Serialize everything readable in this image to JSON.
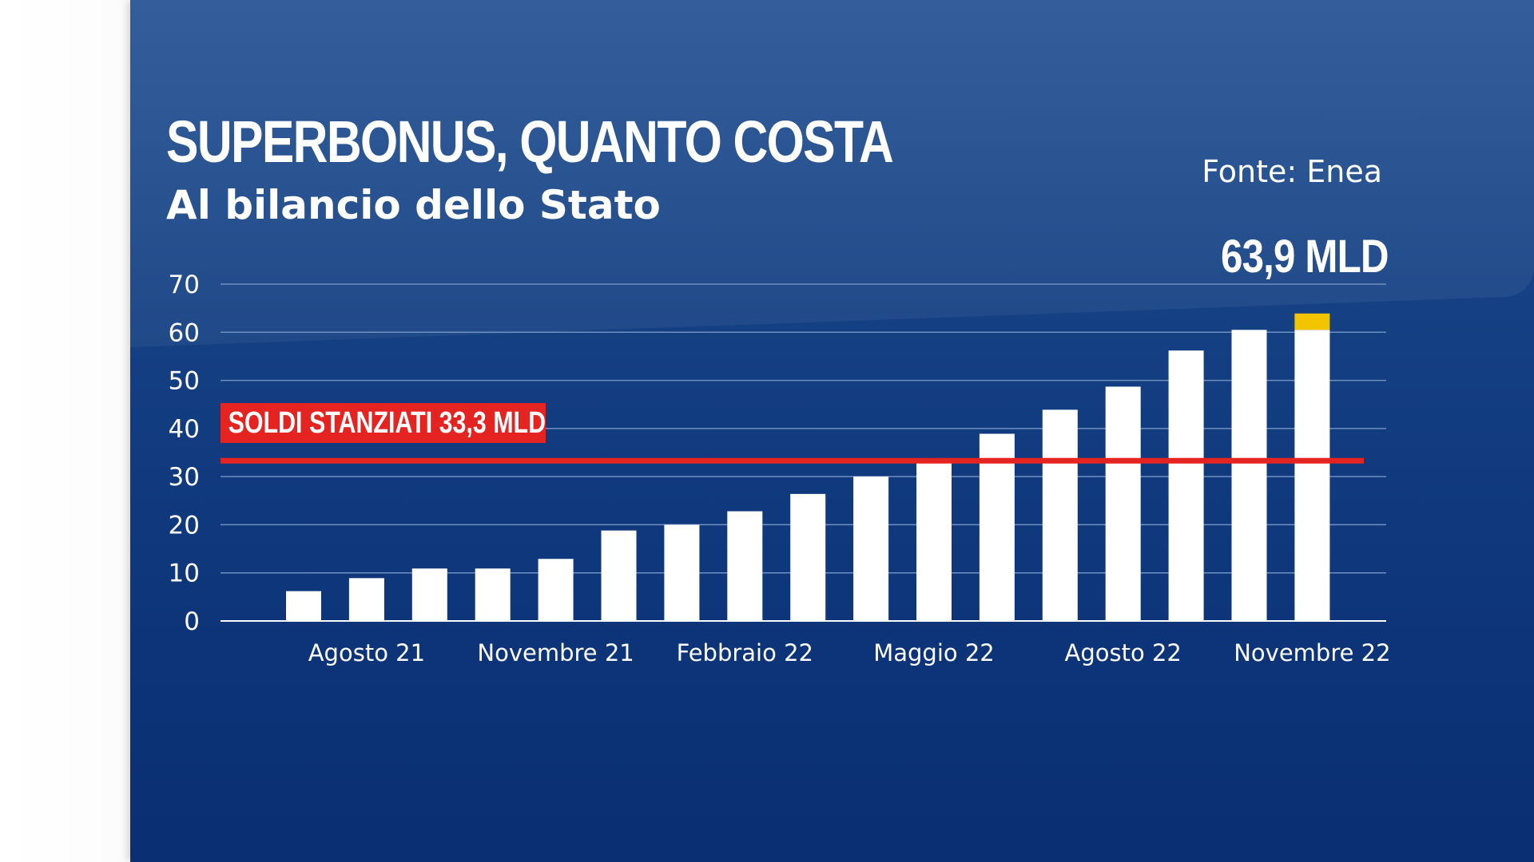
{
  "header": {
    "title": "SUPERBONUS, QUANTO COSTA",
    "subtitle": "Al bilancio dello Stato",
    "source": "Fonte: Enea",
    "total_label": "63,9 MLD"
  },
  "colors": {
    "background_top": "#1d4c90",
    "background_bottom": "#0a2f72",
    "bar": "#ffffff",
    "bar_highlight": "#f2c500",
    "budget_line": "#e52421",
    "grid": "#6f8fc0"
  },
  "chart_data": {
    "type": "bar",
    "title": "SUPERBONUS, QUANTO COSTA",
    "subtitle": "Al bilancio dello Stato",
    "categories": [
      "",
      "Agosto 21",
      "",
      "",
      "Novembre 21",
      "",
      "",
      "Febbraio 22",
      "",
      "",
      "Maggio 22",
      "",
      "",
      "Agosto 22",
      "",
      "",
      "Novembre 22"
    ],
    "values": [
      6.2,
      8.9,
      10.9,
      10.9,
      12.9,
      18.8,
      20.0,
      22.8,
      26.4,
      30.0,
      33.6,
      38.9,
      43.9,
      48.7,
      56.2,
      60.5,
      63.9
    ],
    "highlight": {
      "index": 16,
      "from": 60.5,
      "to": 63.9,
      "color": "#f2c500"
    },
    "yticks": [
      0,
      10,
      20,
      30,
      40,
      50,
      60,
      70
    ],
    "ylim": [
      0,
      70
    ],
    "grid": true,
    "reference_line": {
      "value": 33.3,
      "label": "SOLDI STANZIATI 33,3 MLD",
      "color": "#e52421"
    },
    "annotation": "63,9 MLD",
    "legend": "none"
  }
}
